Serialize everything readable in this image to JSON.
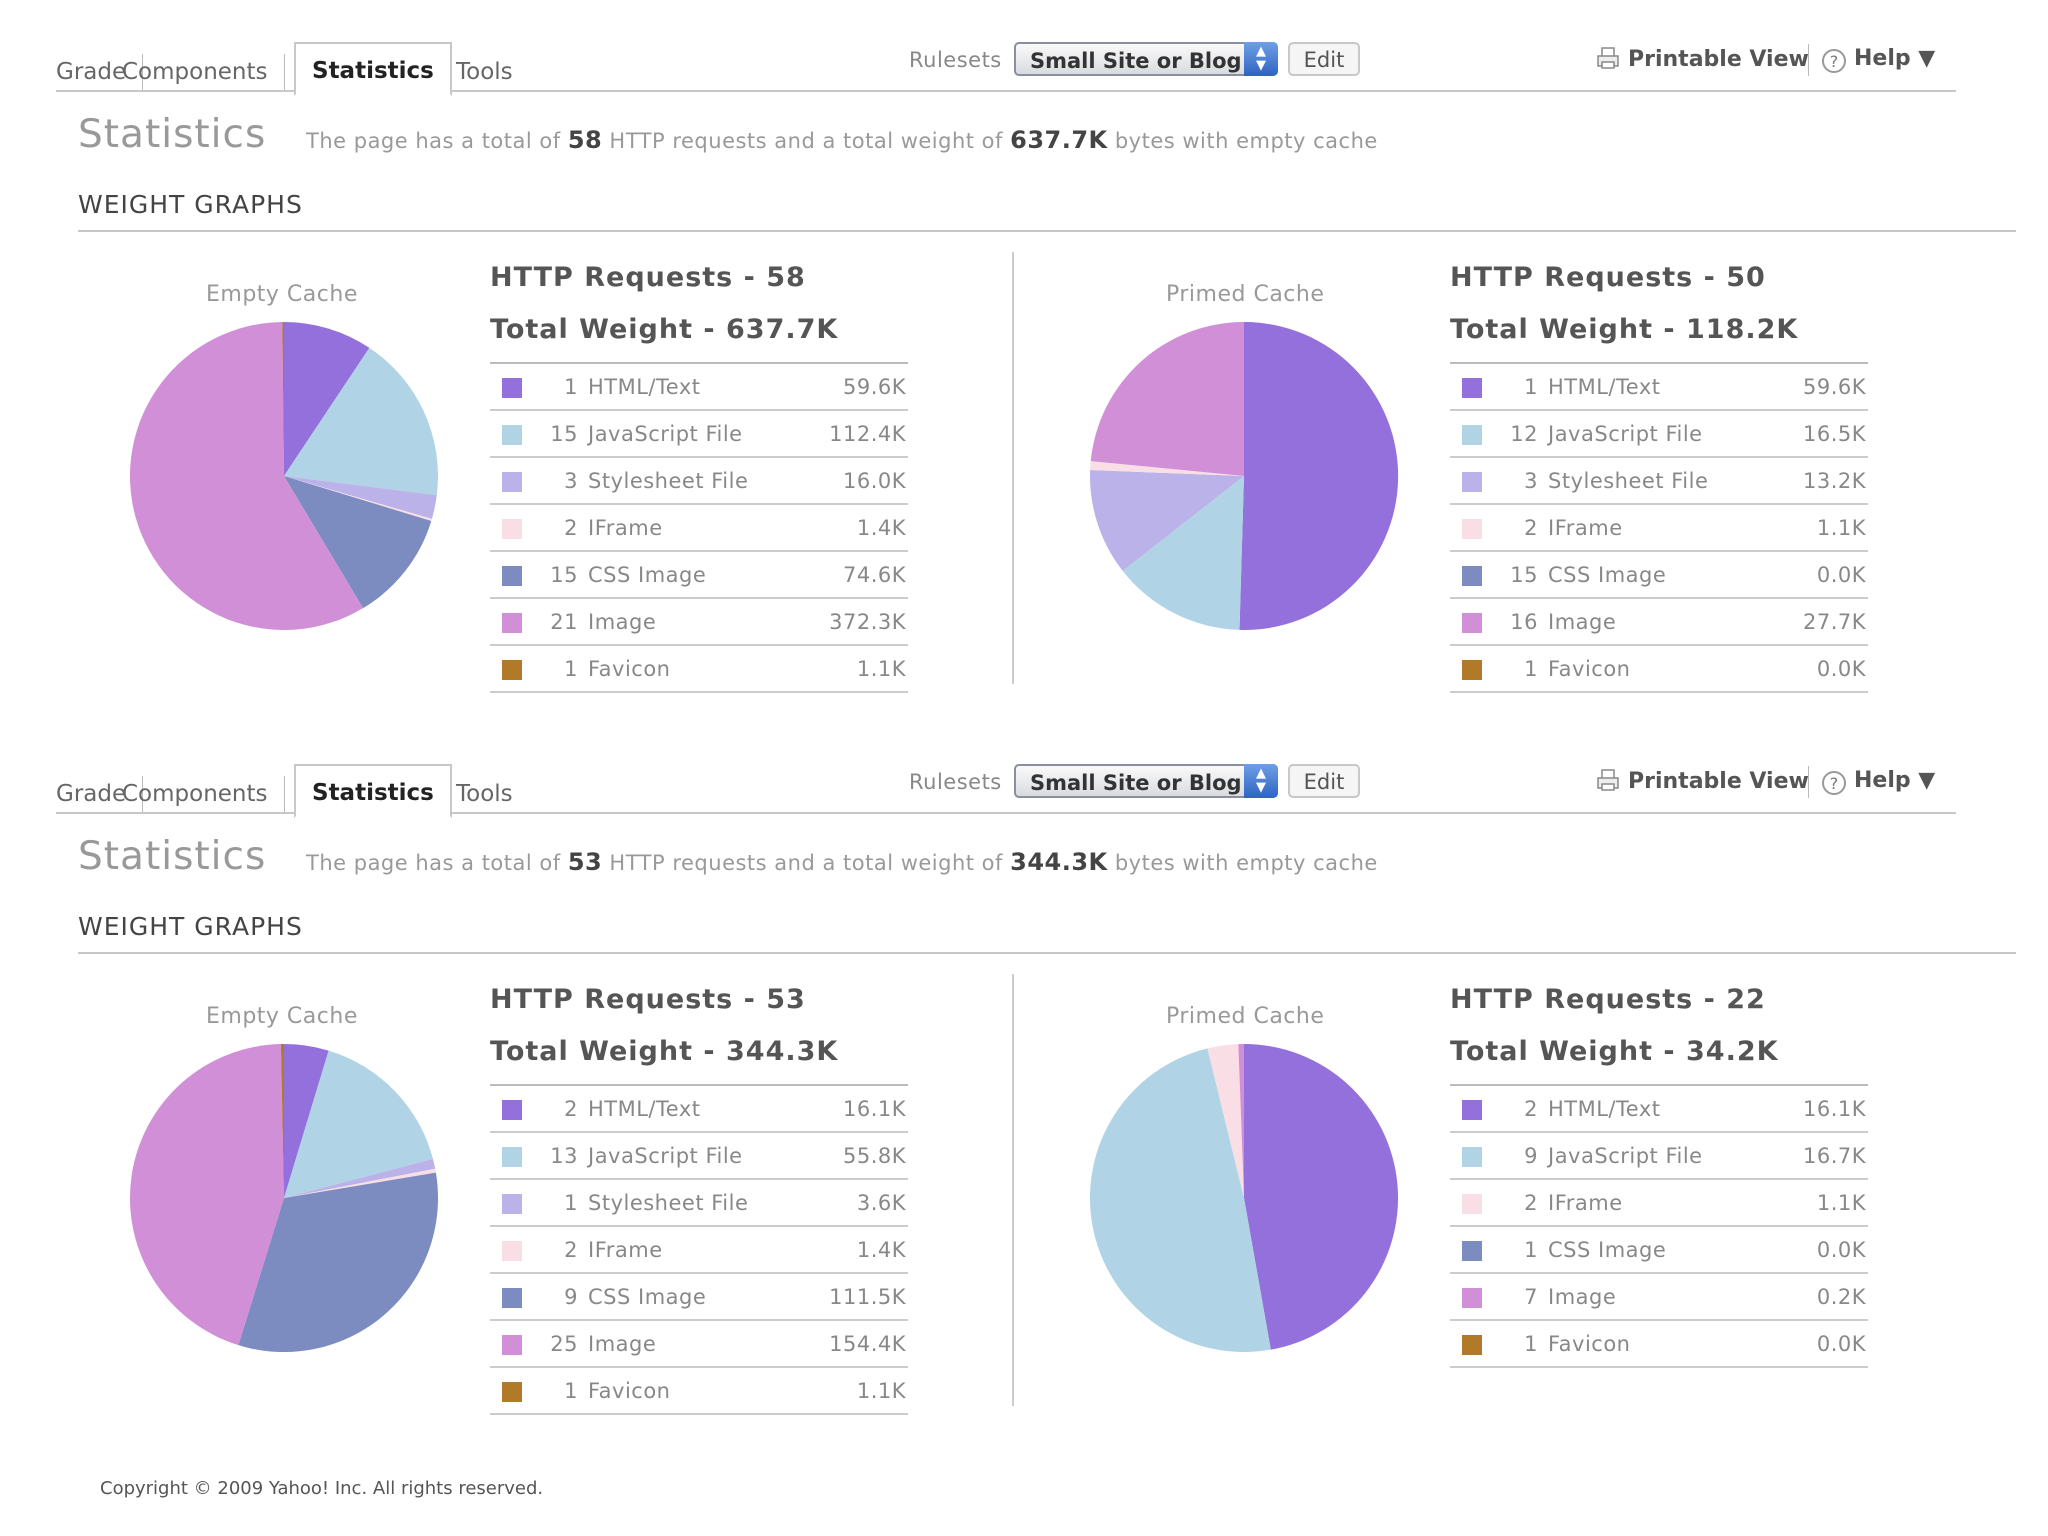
{
  "colors": {
    "html_text": "#9370DB",
    "javascript": "#B0D4E6",
    "stylesheet": "#BBB2E9",
    "iframe": "#F9DFE5",
    "css_image": "#7C8CC0",
    "image": "#D08FD6",
    "favicon": "#B07A28",
    "primed_label_color": "#999999"
  },
  "copyright": "Copyright © 2009 Yahoo! Inc. All rights reserved.",
  "blocks": [
    {
      "tabs": [
        "Grade",
        "Components",
        "Statistics",
        "Tools"
      ],
      "active_tab": "Statistics",
      "rulesets_label": "Rulesets",
      "ruleset_value": "Small Site or Blog",
      "edit_label": "Edit",
      "printable_label": "Printable View",
      "help_label": "Help ▼",
      "stats_title": "Statistics",
      "summary": {
        "prefix": "The page has a total of",
        "requests": "58",
        "mid": "HTTP requests and a total weight of",
        "weight": "637.7K",
        "suffix": "bytes with empty cache"
      },
      "section_title": "WEIGHT GRAPHS",
      "empty": {
        "label": "Empty Cache",
        "requests_line": "HTTP Requests - 58",
        "weight_line": "Total Weight - 637.7K",
        "rows": [
          {
            "key": "html_text",
            "count": "1",
            "type": "HTML/Text",
            "size": "59.6K",
            "kb": 59.6
          },
          {
            "key": "javascript",
            "count": "15",
            "type": "JavaScript File",
            "size": "112.4K",
            "kb": 112.4
          },
          {
            "key": "stylesheet",
            "count": "3",
            "type": "Stylesheet File",
            "size": "16.0K",
            "kb": 16.0
          },
          {
            "key": "iframe",
            "count": "2",
            "type": "IFrame",
            "size": "1.4K",
            "kb": 1.4
          },
          {
            "key": "css_image",
            "count": "15",
            "type": "CSS Image",
            "size": "74.6K",
            "kb": 74.6
          },
          {
            "key": "image",
            "count": "21",
            "type": "Image",
            "size": "372.3K",
            "kb": 372.3
          },
          {
            "key": "favicon",
            "count": "1",
            "type": "Favicon",
            "size": "1.1K",
            "kb": 1.1
          }
        ]
      },
      "primed": {
        "label": "Primed Cache",
        "requests_line": "HTTP Requests - 50",
        "weight_line": "Total Weight - 118.2K",
        "rows": [
          {
            "key": "html_text",
            "count": "1",
            "type": "HTML/Text",
            "size": "59.6K",
            "kb": 59.6
          },
          {
            "key": "javascript",
            "count": "12",
            "type": "JavaScript File",
            "size": "16.5K",
            "kb": 16.5
          },
          {
            "key": "stylesheet",
            "count": "3",
            "type": "Stylesheet File",
            "size": "13.2K",
            "kb": 13.2
          },
          {
            "key": "iframe",
            "count": "2",
            "type": "IFrame",
            "size": "1.1K",
            "kb": 1.1
          },
          {
            "key": "css_image",
            "count": "15",
            "type": "CSS Image",
            "size": "0.0K",
            "kb": 0.0
          },
          {
            "key": "image",
            "count": "16",
            "type": "Image",
            "size": "27.7K",
            "kb": 27.7
          },
          {
            "key": "favicon",
            "count": "1",
            "type": "Favicon",
            "size": "0.0K",
            "kb": 0.0
          }
        ]
      }
    },
    {
      "tabs": [
        "Grade",
        "Components",
        "Statistics",
        "Tools"
      ],
      "active_tab": "Statistics",
      "rulesets_label": "Rulesets",
      "ruleset_value": "Small Site or Blog",
      "edit_label": "Edit",
      "printable_label": "Printable View",
      "help_label": "Help ▼",
      "stats_title": "Statistics",
      "summary": {
        "prefix": "The page has a total of",
        "requests": "53",
        "mid": "HTTP requests and a total weight of",
        "weight": "344.3K",
        "suffix": "bytes with empty cache"
      },
      "section_title": "WEIGHT GRAPHS",
      "empty": {
        "label": "Empty Cache",
        "requests_line": "HTTP Requests - 53",
        "weight_line": "Total Weight - 344.3K",
        "rows": [
          {
            "key": "html_text",
            "count": "2",
            "type": "HTML/Text",
            "size": "16.1K",
            "kb": 16.1
          },
          {
            "key": "javascript",
            "count": "13",
            "type": "JavaScript File",
            "size": "55.8K",
            "kb": 55.8
          },
          {
            "key": "stylesheet",
            "count": "1",
            "type": "Stylesheet File",
            "size": "3.6K",
            "kb": 3.6
          },
          {
            "key": "iframe",
            "count": "2",
            "type": "IFrame",
            "size": "1.4K",
            "kb": 1.4
          },
          {
            "key": "css_image",
            "count": "9",
            "type": "CSS Image",
            "size": "111.5K",
            "kb": 111.5
          },
          {
            "key": "image",
            "count": "25",
            "type": "Image",
            "size": "154.4K",
            "kb": 154.4
          },
          {
            "key": "favicon",
            "count": "1",
            "type": "Favicon",
            "size": "1.1K",
            "kb": 1.1
          }
        ]
      },
      "primed": {
        "label": "Primed Cache",
        "requests_line": "HTTP Requests - 22",
        "weight_line": "Total Weight - 34.2K",
        "rows": [
          {
            "key": "html_text",
            "count": "2",
            "type": "HTML/Text",
            "size": "16.1K",
            "kb": 16.1
          },
          {
            "key": "javascript",
            "count": "9",
            "type": "JavaScript File",
            "size": "16.7K",
            "kb": 16.7
          },
          {
            "key": "iframe",
            "count": "2",
            "type": "IFrame",
            "size": "1.1K",
            "kb": 1.1
          },
          {
            "key": "css_image",
            "count": "1",
            "type": "CSS Image",
            "size": "0.0K",
            "kb": 0.0
          },
          {
            "key": "image",
            "count": "7",
            "type": "Image",
            "size": "0.2K",
            "kb": 0.2
          },
          {
            "key": "favicon",
            "count": "1",
            "type": "Favicon",
            "size": "0.0K",
            "kb": 0.0
          }
        ]
      }
    }
  ]
}
